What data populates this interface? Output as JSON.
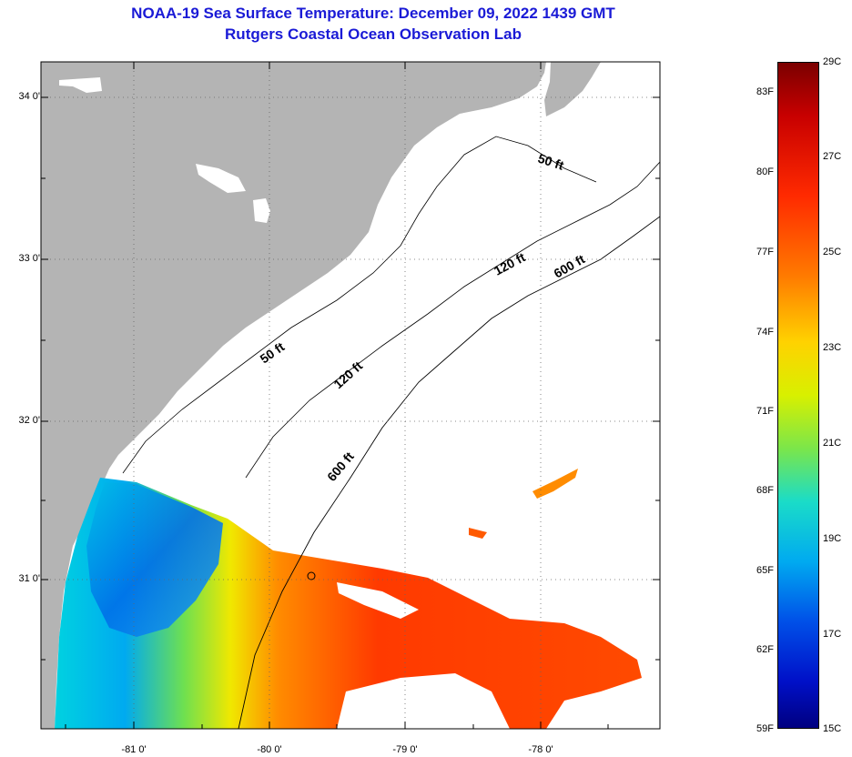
{
  "title": "NOAA-19 Sea Surface Temperature:  December 09, 2022 1439 GMT",
  "subtitle": "Rutgers Coastal Ocean Observation Lab",
  "latitude_labels": [
    "34 0'",
    "33 0'",
    "32 0'",
    "31 0'"
  ],
  "longitude_labels": [
    "-81 0'",
    "-80 0'",
    "-79 0'",
    "-78 0'"
  ],
  "contour_labels": {
    "c50_north": "50 ft",
    "c50_south": "50 ft",
    "c120_north": "120 ft",
    "c120_south": "120 ft",
    "c600_north": "600 ft",
    "c600_south": "600 ft"
  },
  "colorbar": {
    "fahrenheit": [
      "83F",
      "80F",
      "77F",
      "74F",
      "71F",
      "68F",
      "65F",
      "62F",
      "59F"
    ],
    "celsius": [
      "29C",
      "27C",
      "25C",
      "23C",
      "21C",
      "19C",
      "17C",
      "15C"
    ]
  },
  "colors": {
    "title": "#1a1ad6",
    "land": "#b4b4b4",
    "ocean_nodata": "#ffffff"
  }
}
